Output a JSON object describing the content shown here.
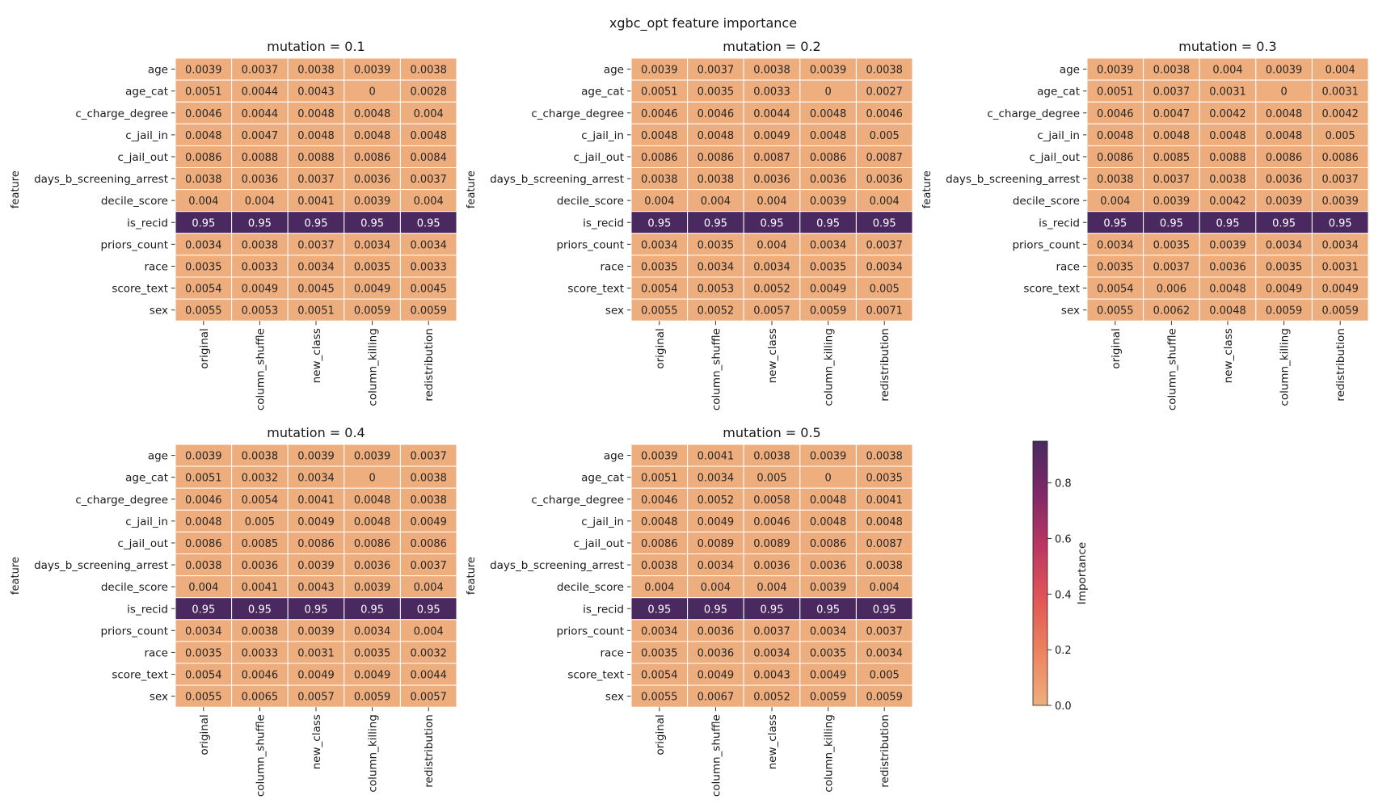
{
  "figure": {
    "title": "xgbc_opt feature importance"
  },
  "chart_data": {
    "type": "heatmap",
    "rows": [
      "age",
      "age_cat",
      "c_charge_degree",
      "c_jail_in",
      "c_jail_out",
      "days_b_screening_arrest",
      "decile_score",
      "is_recid",
      "priors_count",
      "race",
      "score_text",
      "sex"
    ],
    "columns": [
      "original",
      "column_shuffle",
      "new_class",
      "column_killing",
      "redistribution"
    ],
    "ylabel": "feature",
    "panels": [
      {
        "title": "mutation = 0.1",
        "values": [
          [
            "0.0039",
            "0.0037",
            "0.0038",
            "0.0039",
            "0.0038"
          ],
          [
            "0.0051",
            "0.0044",
            "0.0043",
            "0",
            "0.0028"
          ],
          [
            "0.0046",
            "0.0044",
            "0.0048",
            "0.0048",
            "0.004"
          ],
          [
            "0.0048",
            "0.0047",
            "0.0048",
            "0.0048",
            "0.0048"
          ],
          [
            "0.0086",
            "0.0088",
            "0.0088",
            "0.0086",
            "0.0084"
          ],
          [
            "0.0038",
            "0.0036",
            "0.0037",
            "0.0036",
            "0.0037"
          ],
          [
            "0.004",
            "0.004",
            "0.0041",
            "0.0039",
            "0.004"
          ],
          [
            "0.95",
            "0.95",
            "0.95",
            "0.95",
            "0.95"
          ],
          [
            "0.0034",
            "0.0038",
            "0.0037",
            "0.0034",
            "0.0034"
          ],
          [
            "0.0035",
            "0.0033",
            "0.0034",
            "0.0035",
            "0.0033"
          ],
          [
            "0.0054",
            "0.0049",
            "0.0045",
            "0.0049",
            "0.0045"
          ],
          [
            "0.0055",
            "0.0053",
            "0.0051",
            "0.0059",
            "0.0059"
          ]
        ]
      },
      {
        "title": "mutation = 0.2",
        "values": [
          [
            "0.0039",
            "0.0037",
            "0.0038",
            "0.0039",
            "0.0038"
          ],
          [
            "0.0051",
            "0.0035",
            "0.0033",
            "0",
            "0.0027"
          ],
          [
            "0.0046",
            "0.0046",
            "0.0044",
            "0.0048",
            "0.0046"
          ],
          [
            "0.0048",
            "0.0048",
            "0.0049",
            "0.0048",
            "0.005"
          ],
          [
            "0.0086",
            "0.0086",
            "0.0087",
            "0.0086",
            "0.0087"
          ],
          [
            "0.0038",
            "0.0038",
            "0.0036",
            "0.0036",
            "0.0036"
          ],
          [
            "0.004",
            "0.004",
            "0.004",
            "0.0039",
            "0.004"
          ],
          [
            "0.95",
            "0.95",
            "0.95",
            "0.95",
            "0.95"
          ],
          [
            "0.0034",
            "0.0035",
            "0.004",
            "0.0034",
            "0.0037"
          ],
          [
            "0.0035",
            "0.0034",
            "0.0034",
            "0.0035",
            "0.0034"
          ],
          [
            "0.0054",
            "0.0053",
            "0.0052",
            "0.0049",
            "0.005"
          ],
          [
            "0.0055",
            "0.0052",
            "0.0057",
            "0.0059",
            "0.0071"
          ]
        ]
      },
      {
        "title": "mutation = 0.3",
        "values": [
          [
            "0.0039",
            "0.0038",
            "0.004",
            "0.0039",
            "0.004"
          ],
          [
            "0.0051",
            "0.0037",
            "0.0031",
            "0",
            "0.0031"
          ],
          [
            "0.0046",
            "0.0047",
            "0.0042",
            "0.0048",
            "0.0042"
          ],
          [
            "0.0048",
            "0.0048",
            "0.0048",
            "0.0048",
            "0.005"
          ],
          [
            "0.0086",
            "0.0085",
            "0.0088",
            "0.0086",
            "0.0086"
          ],
          [
            "0.0038",
            "0.0037",
            "0.0038",
            "0.0036",
            "0.0037"
          ],
          [
            "0.004",
            "0.0039",
            "0.0042",
            "0.0039",
            "0.0039"
          ],
          [
            "0.95",
            "0.95",
            "0.95",
            "0.95",
            "0.95"
          ],
          [
            "0.0034",
            "0.0035",
            "0.0039",
            "0.0034",
            "0.0034"
          ],
          [
            "0.0035",
            "0.0037",
            "0.0036",
            "0.0035",
            "0.0031"
          ],
          [
            "0.0054",
            "0.006",
            "0.0048",
            "0.0049",
            "0.0049"
          ],
          [
            "0.0055",
            "0.0062",
            "0.0048",
            "0.0059",
            "0.0059"
          ]
        ]
      },
      {
        "title": "mutation = 0.4",
        "values": [
          [
            "0.0039",
            "0.0038",
            "0.0039",
            "0.0039",
            "0.0037"
          ],
          [
            "0.0051",
            "0.0032",
            "0.0034",
            "0",
            "0.0038"
          ],
          [
            "0.0046",
            "0.0054",
            "0.0041",
            "0.0048",
            "0.0038"
          ],
          [
            "0.0048",
            "0.005",
            "0.0049",
            "0.0048",
            "0.0049"
          ],
          [
            "0.0086",
            "0.0085",
            "0.0086",
            "0.0086",
            "0.0086"
          ],
          [
            "0.0038",
            "0.0036",
            "0.0039",
            "0.0036",
            "0.0037"
          ],
          [
            "0.004",
            "0.0041",
            "0.0043",
            "0.0039",
            "0.004"
          ],
          [
            "0.95",
            "0.95",
            "0.95",
            "0.95",
            "0.95"
          ],
          [
            "0.0034",
            "0.0038",
            "0.0039",
            "0.0034",
            "0.004"
          ],
          [
            "0.0035",
            "0.0033",
            "0.0031",
            "0.0035",
            "0.0032"
          ],
          [
            "0.0054",
            "0.0046",
            "0.0049",
            "0.0049",
            "0.0044"
          ],
          [
            "0.0055",
            "0.0065",
            "0.0057",
            "0.0059",
            "0.0057"
          ]
        ]
      },
      {
        "title": "mutation = 0.5",
        "values": [
          [
            "0.0039",
            "0.0041",
            "0.0038",
            "0.0039",
            "0.0038"
          ],
          [
            "0.0051",
            "0.0034",
            "0.005",
            "0",
            "0.0035"
          ],
          [
            "0.0046",
            "0.0052",
            "0.0058",
            "0.0048",
            "0.0041"
          ],
          [
            "0.0048",
            "0.0049",
            "0.0046",
            "0.0048",
            "0.0048"
          ],
          [
            "0.0086",
            "0.0089",
            "0.0089",
            "0.0086",
            "0.0087"
          ],
          [
            "0.0038",
            "0.0034",
            "0.0036",
            "0.0036",
            "0.0038"
          ],
          [
            "0.004",
            "0.004",
            "0.004",
            "0.0039",
            "0.004"
          ],
          [
            "0.95",
            "0.95",
            "0.95",
            "0.95",
            "0.95"
          ],
          [
            "0.0034",
            "0.0036",
            "0.0037",
            "0.0034",
            "0.0037"
          ],
          [
            "0.0035",
            "0.0036",
            "0.0034",
            "0.0035",
            "0.0034"
          ],
          [
            "0.0054",
            "0.0049",
            "0.0043",
            "0.0049",
            "0.005"
          ],
          [
            "0.0055",
            "0.0067",
            "0.0052",
            "0.0059",
            "0.0059"
          ]
        ]
      }
    ],
    "colorbar": {
      "label": "Importance",
      "range": [
        0,
        0.95
      ],
      "ticks": [
        "0.0",
        "0.2",
        "0.4",
        "0.6",
        "0.8"
      ],
      "tick_values": [
        0,
        0.2,
        0.4,
        0.6,
        0.8
      ],
      "colormap": "flare",
      "color_low": "#eeae7e",
      "color_high": "#4a2960"
    }
  }
}
